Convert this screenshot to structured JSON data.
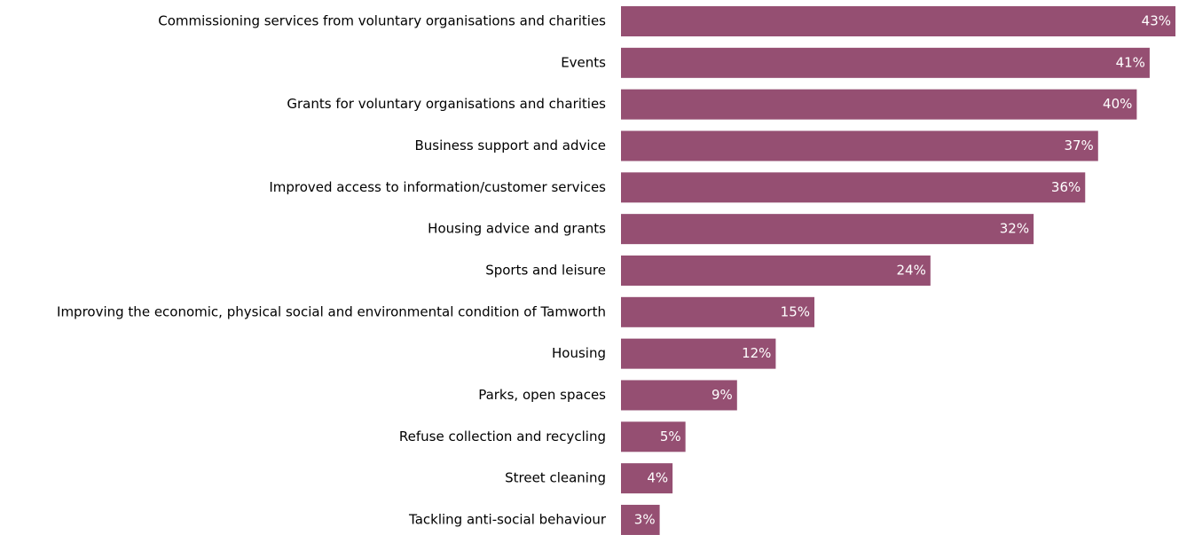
{
  "chart_data": {
    "type": "bar",
    "categories": [
      "Commissioning services from voluntary organisations and charities",
      "Events",
      "Grants for voluntary organisations and charities",
      "Business support and advice",
      "Improved access to information/customer services",
      "Housing advice and grants",
      "Sports and leisure",
      "Improving the economic, physical social and environmental condition of Tamworth",
      "Housing",
      "Parks, open spaces",
      "Refuse collection and recycling",
      "Street cleaning",
      "Tackling anti-social behaviour"
    ],
    "values": [
      43,
      41,
      40,
      37,
      36,
      32,
      24,
      15,
      12,
      9,
      5,
      4,
      3
    ],
    "value_labels": [
      "43%",
      "41%",
      "40%",
      "37%",
      "36%",
      "32%",
      "24%",
      "15%",
      "12%",
      "9%",
      "5%",
      "4%",
      "3%"
    ],
    "color": "#954f72"
  }
}
